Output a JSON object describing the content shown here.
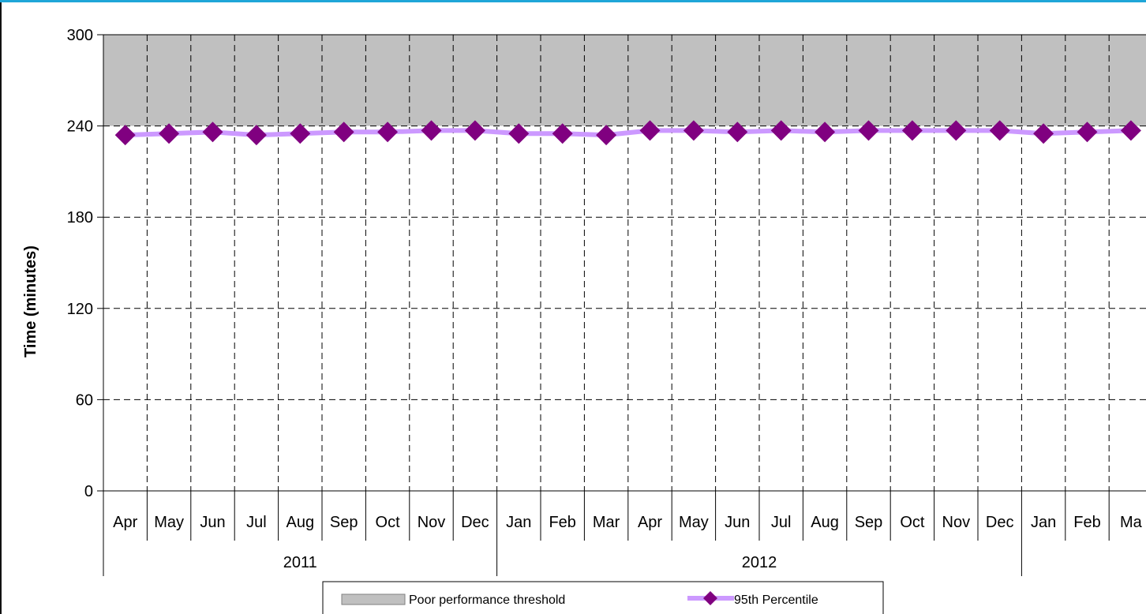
{
  "colors": {
    "threshold_fill": "#C0C0C0",
    "line": "#CC99FF",
    "marker": "#800080",
    "top_strip": "#1FA6D8"
  },
  "chart_data": {
    "type": "line",
    "ylabel": "Time (minutes)",
    "ylim": [
      0,
      300
    ],
    "yticks": [
      0,
      60,
      120,
      180,
      240,
      300
    ],
    "categories": [
      "Apr",
      "May",
      "Jun",
      "Jul",
      "Aug",
      "Sep",
      "Oct",
      "Nov",
      "Dec",
      "Jan",
      "Feb",
      "Mar",
      "Apr",
      "May",
      "Jun",
      "Jul",
      "Aug",
      "Sep",
      "Oct",
      "Nov",
      "Dec",
      "Jan",
      "Feb",
      "Ma"
    ],
    "years": [
      {
        "label": "2011",
        "start": 0,
        "end": 8
      },
      {
        "label": "2012",
        "start": 9,
        "end": 20
      }
    ],
    "grid": true,
    "series": [
      {
        "name": "Poor performance threshold",
        "kind": "area",
        "from": 240,
        "to": 300
      },
      {
        "name": "95th Percentile",
        "kind": "line",
        "values": [
          234,
          235,
          236,
          234,
          235,
          236,
          236,
          237,
          237,
          235,
          235,
          234,
          237,
          237,
          236,
          237,
          236,
          237,
          237,
          237,
          237,
          235,
          236,
          237
        ]
      }
    ],
    "legend_position": "bottom"
  }
}
